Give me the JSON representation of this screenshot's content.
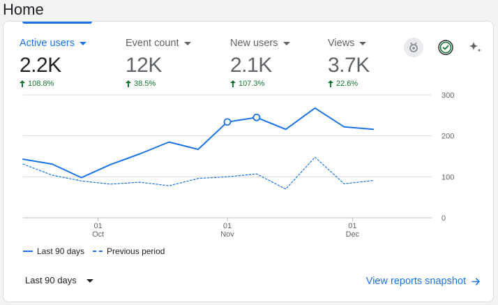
{
  "page": {
    "title": "Home"
  },
  "metrics": [
    {
      "label": "Active users",
      "value": "2.2K",
      "change": "108.8%"
    },
    {
      "label": "Event count",
      "value": "12K",
      "change": "38.5%"
    },
    {
      "label": "New users",
      "value": "2.1K",
      "change": "107.3%"
    },
    {
      "label": "Views",
      "value": "3.7K",
      "change": "22.6%"
    }
  ],
  "toolbar_icons": [
    "insights-badge-icon",
    "check-circle-icon",
    "sparkle-icon"
  ],
  "colors": {
    "accent": "#1a73e8",
    "positive": "#137333",
    "grid": "#dadce0"
  },
  "chart_data": {
    "type": "line",
    "x": [
      "2024-09-13",
      "2024-09-20",
      "2024-09-27",
      "2024-10-04",
      "2024-10-11",
      "2024-10-18",
      "2024-10-25",
      "2024-11-01",
      "2024-11-08",
      "2024-11-15",
      "2024-11-22",
      "2024-11-29",
      "2024-12-06"
    ],
    "series": [
      {
        "name": "Last 90 days",
        "style": "solid",
        "values": [
          143,
          131,
          98,
          130,
          156,
          185,
          167,
          234,
          245,
          216,
          268,
          222,
          216
        ]
      },
      {
        "name": "Previous period",
        "style": "dashed",
        "values": [
          131,
          104,
          90,
          82,
          87,
          78,
          96,
          100,
          107,
          70,
          148,
          83,
          91
        ]
      }
    ],
    "highlight_points": [
      "2024-11-01",
      "2024-11-08"
    ],
    "x_ticks": [
      {
        "date": "2024-10-01",
        "day": "01",
        "month": "Oct"
      },
      {
        "date": "2024-11-01",
        "day": "01",
        "month": "Nov"
      },
      {
        "date": "2024-12-01",
        "day": "01",
        "month": "Dec"
      }
    ],
    "y_ticks": [
      "0",
      "100",
      "200",
      "300"
    ],
    "ylim": [
      0,
      300
    ],
    "xlim": [
      "2024-09-13",
      "2024-12-20"
    ],
    "grid": true,
    "legend_position": "bottom-left"
  },
  "legend": {
    "current": "Last 90 days",
    "previous": "Previous period"
  },
  "range_select": {
    "value": "Last 90 days"
  },
  "footer": {
    "link_label": "View reports snapshot"
  }
}
